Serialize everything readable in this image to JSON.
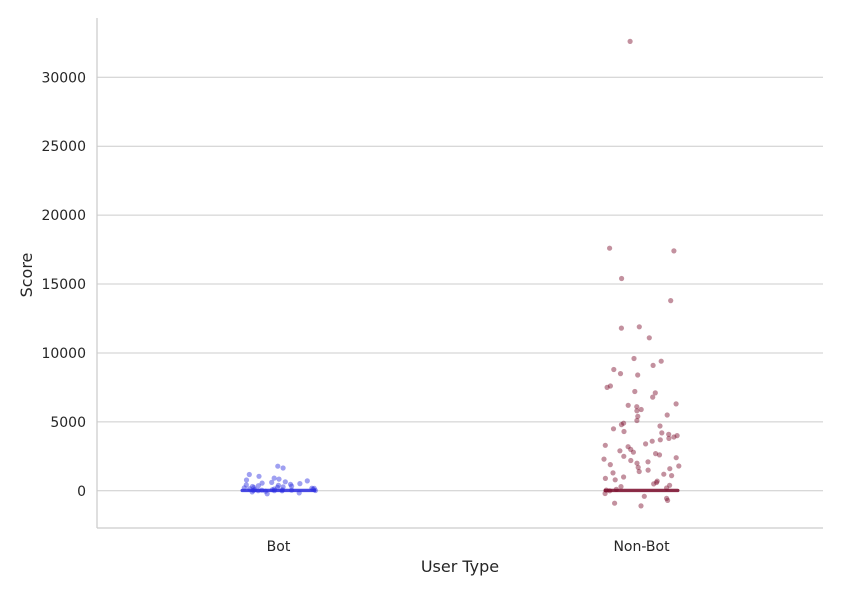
{
  "chart_data": {
    "type": "scatter",
    "subtype": "strip-plot",
    "xlabel": "User Type",
    "ylabel": "Score",
    "categories": [
      "Bot",
      "Non-Bot"
    ],
    "ylim": [
      -2700,
      34300
    ],
    "yticks": [
      0,
      5000,
      10000,
      15000,
      20000,
      25000,
      30000
    ],
    "grid": "horizontal",
    "point_alpha": 0.45,
    "series": [
      {
        "category": "Bot",
        "color": "#2b2de0",
        "values": [
          1780,
          1650,
          1180,
          1050,
          920,
          850,
          780,
          720,
          650,
          610,
          560,
          520,
          470,
          430,
          400,
          370,
          340,
          310,
          280,
          250,
          230,
          210,
          190,
          170,
          150,
          130,
          110,
          95,
          80,
          65,
          50,
          40,
          30,
          20,
          10,
          5,
          0,
          -30,
          -80,
          -150,
          -220
        ]
      },
      {
        "category": "Non-Bot",
        "color": "#7a0a2a",
        "values": [
          32600,
          17600,
          17400,
          15400,
          13800,
          11900,
          11800,
          11100,
          9600,
          9400,
          9100,
          8800,
          8500,
          8400,
          7600,
          7500,
          7200,
          7100,
          6800,
          6300,
          6200,
          6100,
          5900,
          5800,
          5500,
          5400,
          5100,
          4900,
          4800,
          4700,
          4500,
          4300,
          4200,
          4100,
          4000,
          3900,
          3800,
          3700,
          3600,
          3400,
          3300,
          3200,
          3000,
          2900,
          2800,
          2700,
          2600,
          2500,
          2400,
          2300,
          2200,
          2100,
          2000,
          1900,
          1800,
          1700,
          1600,
          1500,
          1400,
          1300,
          1200,
          1100,
          1000,
          900,
          800,
          700,
          600,
          500,
          400,
          300,
          200,
          100,
          50,
          0,
          -200,
          -400,
          -550,
          -700,
          -900,
          -1100
        ]
      }
    ]
  }
}
